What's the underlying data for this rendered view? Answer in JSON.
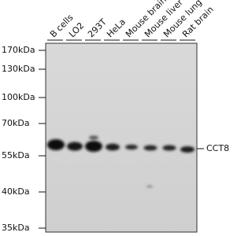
{
  "lanes": [
    "B cells",
    "LO2",
    "293T",
    "HeLa",
    "Mouse brain",
    "Mouse liver",
    "Mouse lung",
    "Rat brain"
  ],
  "markers": [
    "170kDa",
    "130kDa",
    "100kDa",
    "70kDa",
    "55kDa",
    "40kDa",
    "35kDa"
  ],
  "band_label": "CCT8"
}
